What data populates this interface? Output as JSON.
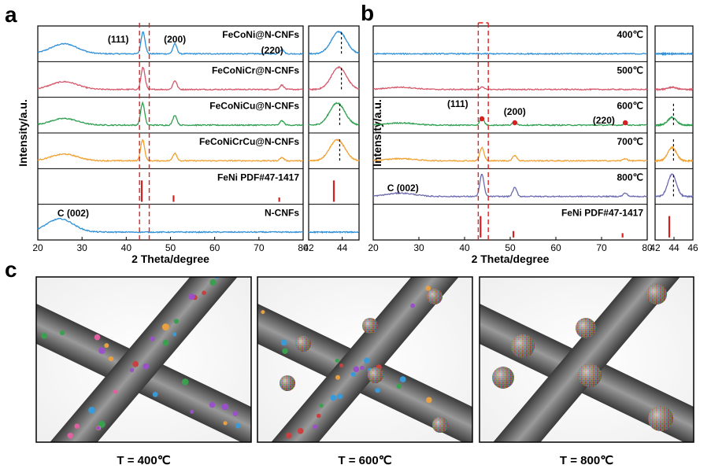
{
  "panel_a": {
    "label": "a",
    "ylabel": "Intensity/a.u.",
    "xlabel": "2 Theta/degree",
    "peak_labels": [
      "(111)",
      "(200)",
      "(220)"
    ],
    "c_label": "C (002)"
  },
  "panel_b": {
    "label": "b",
    "ylabel": "Intensity/a.u.",
    "xlabel": "2 Theta/degree",
    "peak_labels": [
      "(111)",
      "(200)",
      "(220)"
    ],
    "c_label": "C (002)"
  },
  "panel_c": {
    "label": "c",
    "captions": [
      "T = 400℃",
      "T = 600℃",
      "T = 800℃"
    ]
  },
  "colors": {
    "blue": "#2e8fd6",
    "pink": "#d6586a",
    "green": "#2e9e4f",
    "orange": "#f0a030",
    "purple": "#6b6ab0",
    "ref_red": "#d42020",
    "dash": "#e02020"
  },
  "chart_data": [
    {
      "type": "line",
      "title": "",
      "xlabel": "2 Theta/degree",
      "ylabel": "Intensity/a.u.",
      "xlim": [
        20,
        80
      ],
      "xticks": [
        20,
        30,
        40,
        50,
        60,
        70,
        80
      ],
      "inset_xlim": [
        42,
        45
      ],
      "inset_xticks": [
        42,
        44
      ],
      "series": [
        {
          "name": "FeCoNi@N-CNFs",
          "color": "#2e8fd6",
          "peaks": [
            [
              26,
              0.45
            ],
            [
              43.8,
              1.0
            ],
            [
              51.0,
              0.45
            ],
            [
              75.2,
              0.2
            ]
          ]
        },
        {
          "name": "FeCoNiCr@N-CNFs",
          "color": "#d6586a",
          "peaks": [
            [
              26,
              0.35
            ],
            [
              43.8,
              1.0
            ],
            [
              51.0,
              0.4
            ],
            [
              75.2,
              0.2
            ]
          ]
        },
        {
          "name": "FeCoNiCu@N-CNFs",
          "color": "#2e9e4f",
          "peaks": [
            [
              26,
              0.3
            ],
            [
              43.7,
              1.0
            ],
            [
              51.0,
              0.45
            ],
            [
              75.2,
              0.2
            ]
          ]
        },
        {
          "name": "FeCoNiCrCu@N-CNFs",
          "color": "#f0a030",
          "peaks": [
            [
              26,
              0.3
            ],
            [
              43.7,
              0.95
            ],
            [
              51.0,
              0.35
            ],
            [
              75.2,
              0.15
            ]
          ]
        },
        {
          "name": "N-CNFs",
          "color": "#2e8fd6",
          "peaks": [
            [
              25,
              0.6
            ]
          ]
        }
      ],
      "reference": {
        "name": "FeNi PDF#47-1417",
        "lines": [
          [
            43.5,
            1.0
          ],
          [
            50.7,
            0.3
          ],
          [
            74.6,
            0.2
          ]
        ]
      }
    },
    {
      "type": "line",
      "title": "",
      "xlabel": "2 Theta/degree",
      "ylabel": "Intensity/a.u.",
      "xlim": [
        20,
        80
      ],
      "xticks": [
        20,
        30,
        40,
        50,
        60,
        70,
        80
      ],
      "inset_xlim": [
        42,
        46
      ],
      "inset_xticks": [
        42,
        44,
        46
      ],
      "series": [
        {
          "name": "400℃",
          "color": "#2e8fd6",
          "peaks": []
        },
        {
          "name": "500℃",
          "color": "#d6586a",
          "peaks": [
            [
              26,
              0.1
            ],
            [
              43.8,
              0.1
            ]
          ]
        },
        {
          "name": "600℃",
          "color": "#2e9e4f",
          "peaks": [
            [
              26,
              0.1
            ],
            [
              43.8,
              0.35
            ],
            [
              51.0,
              0.15
            ],
            [
              75.2,
              0.05
            ]
          ]
        },
        {
          "name": "700℃",
          "color": "#f0a030",
          "peaks": [
            [
              26,
              0.1
            ],
            [
              43.8,
              0.6
            ],
            [
              51.0,
              0.25
            ],
            [
              75.2,
              0.1
            ]
          ]
        },
        {
          "name": "800℃",
          "color": "#6b6ab0",
          "peaks": [
            [
              26,
              0.15
            ],
            [
              43.8,
              1.0
            ],
            [
              51.0,
              0.4
            ],
            [
              75.2,
              0.15
            ]
          ]
        }
      ],
      "reference": {
        "name": "FeNi PDF#47-1417",
        "lines": [
          [
            43.5,
            1.0
          ],
          [
            50.7,
            0.3
          ],
          [
            74.6,
            0.2
          ]
        ]
      }
    }
  ]
}
